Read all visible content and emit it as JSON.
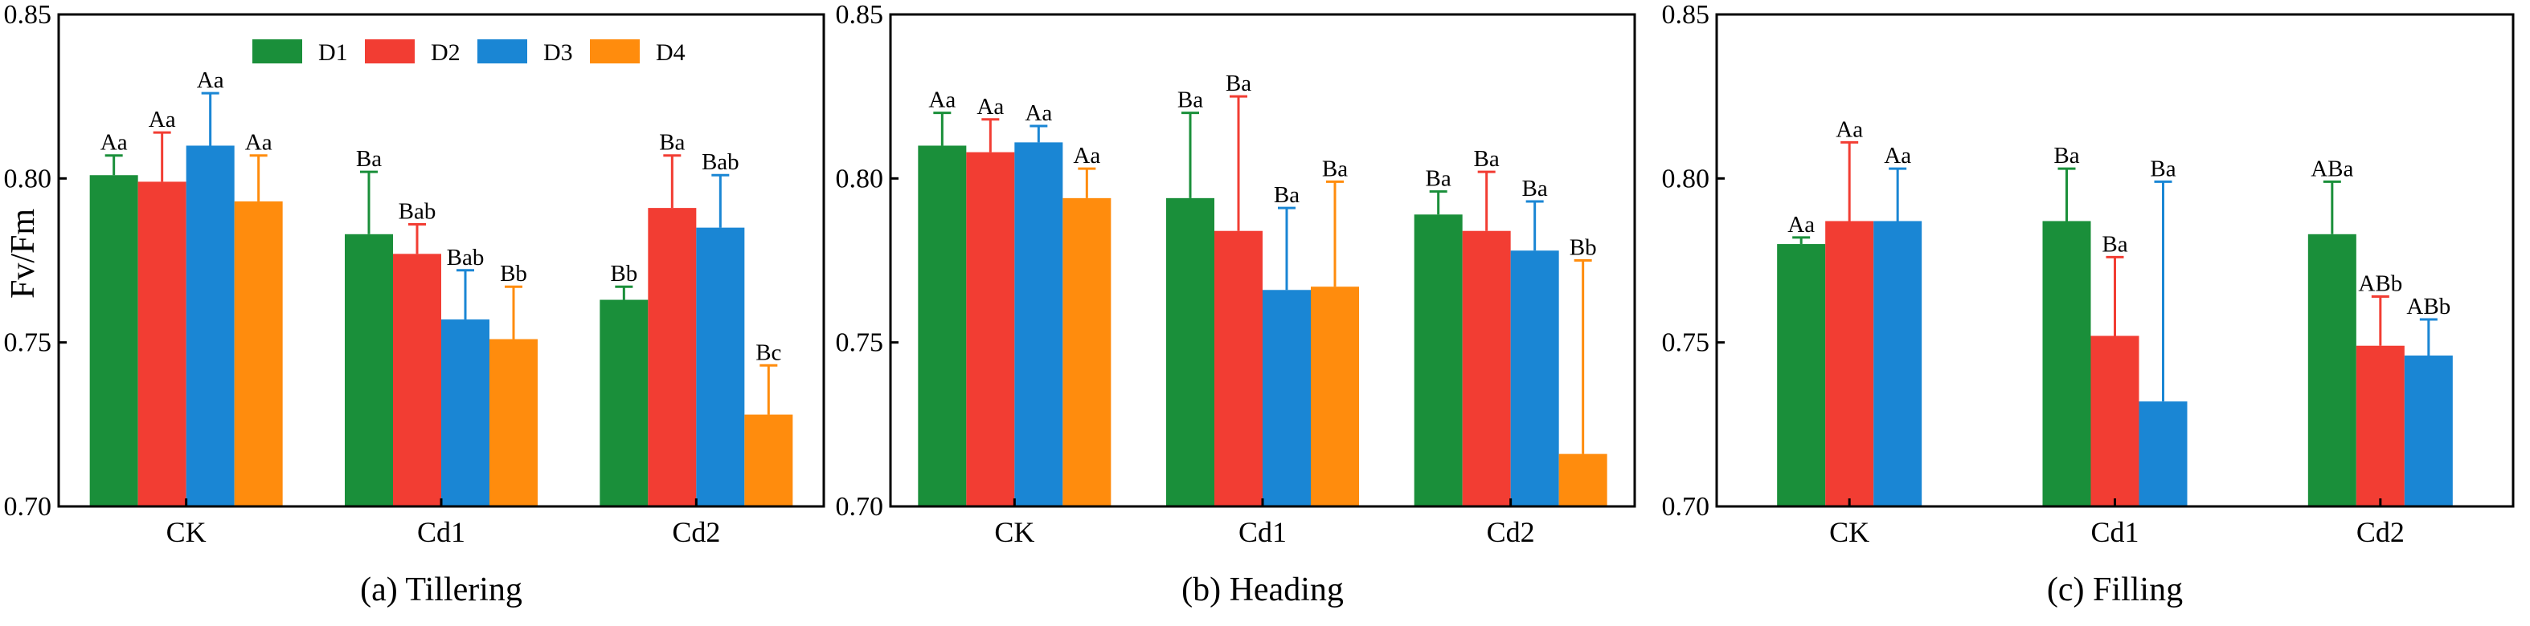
{
  "ylabel": "Fv/Fm",
  "legend": [
    {
      "name": "D1",
      "color": "#1a8f3a"
    },
    {
      "name": "D2",
      "color": "#f23d33"
    },
    {
      "name": "D3",
      "color": "#1a86d4"
    },
    {
      "name": "D4",
      "color": "#ff8c0d"
    }
  ],
  "chart_data": [
    {
      "type": "bar",
      "title": "(a) Tillering",
      "categories": [
        "CK",
        "Cd1",
        "Cd2"
      ],
      "ylim": [
        0.7,
        0.85
      ],
      "yticks": [
        "0.70",
        "0.75",
        "0.80",
        "0.85"
      ],
      "ytick_values": [
        0.7,
        0.75,
        0.8,
        0.85
      ],
      "series": [
        {
          "name": "D1",
          "values": [
            0.801,
            0.783,
            0.763
          ],
          "errors": [
            0.006,
            0.019,
            0.004
          ],
          "labels": [
            "Aa",
            "Ba",
            "Bb"
          ]
        },
        {
          "name": "D2",
          "values": [
            0.799,
            0.777,
            0.791
          ],
          "errors": [
            0.015,
            0.009,
            0.016
          ],
          "labels": [
            "Aa",
            "Bab",
            "Ba"
          ]
        },
        {
          "name": "D3",
          "values": [
            0.81,
            0.757,
            0.785
          ],
          "errors": [
            0.016,
            0.015,
            0.016
          ],
          "labels": [
            "Aa",
            "Bab",
            "Bab"
          ]
        },
        {
          "name": "D4",
          "values": [
            0.793,
            0.751,
            0.728
          ],
          "errors": [
            0.014,
            0.016,
            0.015
          ],
          "labels": [
            "Aa",
            "Bb",
            "Bc"
          ]
        }
      ]
    },
    {
      "type": "bar",
      "title": "(b) Heading",
      "categories": [
        "CK",
        "Cd1",
        "Cd2"
      ],
      "ylim": [
        0.7,
        0.85
      ],
      "yticks": [
        "0.70",
        "0.75",
        "0.80",
        "0.85"
      ],
      "ytick_values": [
        0.7,
        0.75,
        0.8,
        0.85
      ],
      "series": [
        {
          "name": "D1",
          "values": [
            0.81,
            0.794,
            0.789
          ],
          "errors": [
            0.01,
            0.026,
            0.007
          ],
          "labels": [
            "Aa",
            "Ba",
            "Ba"
          ]
        },
        {
          "name": "D2",
          "values": [
            0.808,
            0.784,
            0.784
          ],
          "errors": [
            0.01,
            0.041,
            0.018
          ],
          "labels": [
            "Aa",
            "Ba",
            "Ba"
          ]
        },
        {
          "name": "D3",
          "values": [
            0.811,
            0.766,
            0.778
          ],
          "errors": [
            0.005,
            0.025,
            0.015
          ],
          "labels": [
            "Aa",
            "Ba",
            "Ba"
          ]
        },
        {
          "name": "D4",
          "values": [
            0.794,
            0.767,
            0.716
          ],
          "errors": [
            0.009,
            0.032,
            0.059
          ],
          "labels": [
            "Aa",
            "Ba",
            "Bb"
          ]
        }
      ]
    },
    {
      "type": "bar",
      "title": "(c) Filling",
      "categories": [
        "CK",
        "Cd1",
        "Cd2"
      ],
      "ylim": [
        0.7,
        0.85
      ],
      "yticks": [
        "0.70",
        "0.75",
        "0.80",
        "0.85"
      ],
      "ytick_values": [
        0.7,
        0.75,
        0.8,
        0.85
      ],
      "series": [
        {
          "name": "D1",
          "values": [
            0.78,
            0.787,
            0.783
          ],
          "errors": [
            0.002,
            0.016,
            0.016
          ],
          "labels": [
            "Aa",
            "Ba",
            "ABa"
          ]
        },
        {
          "name": "D2",
          "values": [
            0.787,
            0.752,
            0.749
          ],
          "errors": [
            0.024,
            0.024,
            0.015
          ],
          "labels": [
            "Aa",
            "Ba",
            "ABb"
          ]
        },
        {
          "name": "D3",
          "values": [
            0.787,
            0.732,
            0.746
          ],
          "errors": [
            0.016,
            0.067,
            0.011
          ],
          "labels": [
            "Aa",
            "Ba",
            "ABb"
          ]
        }
      ]
    }
  ]
}
